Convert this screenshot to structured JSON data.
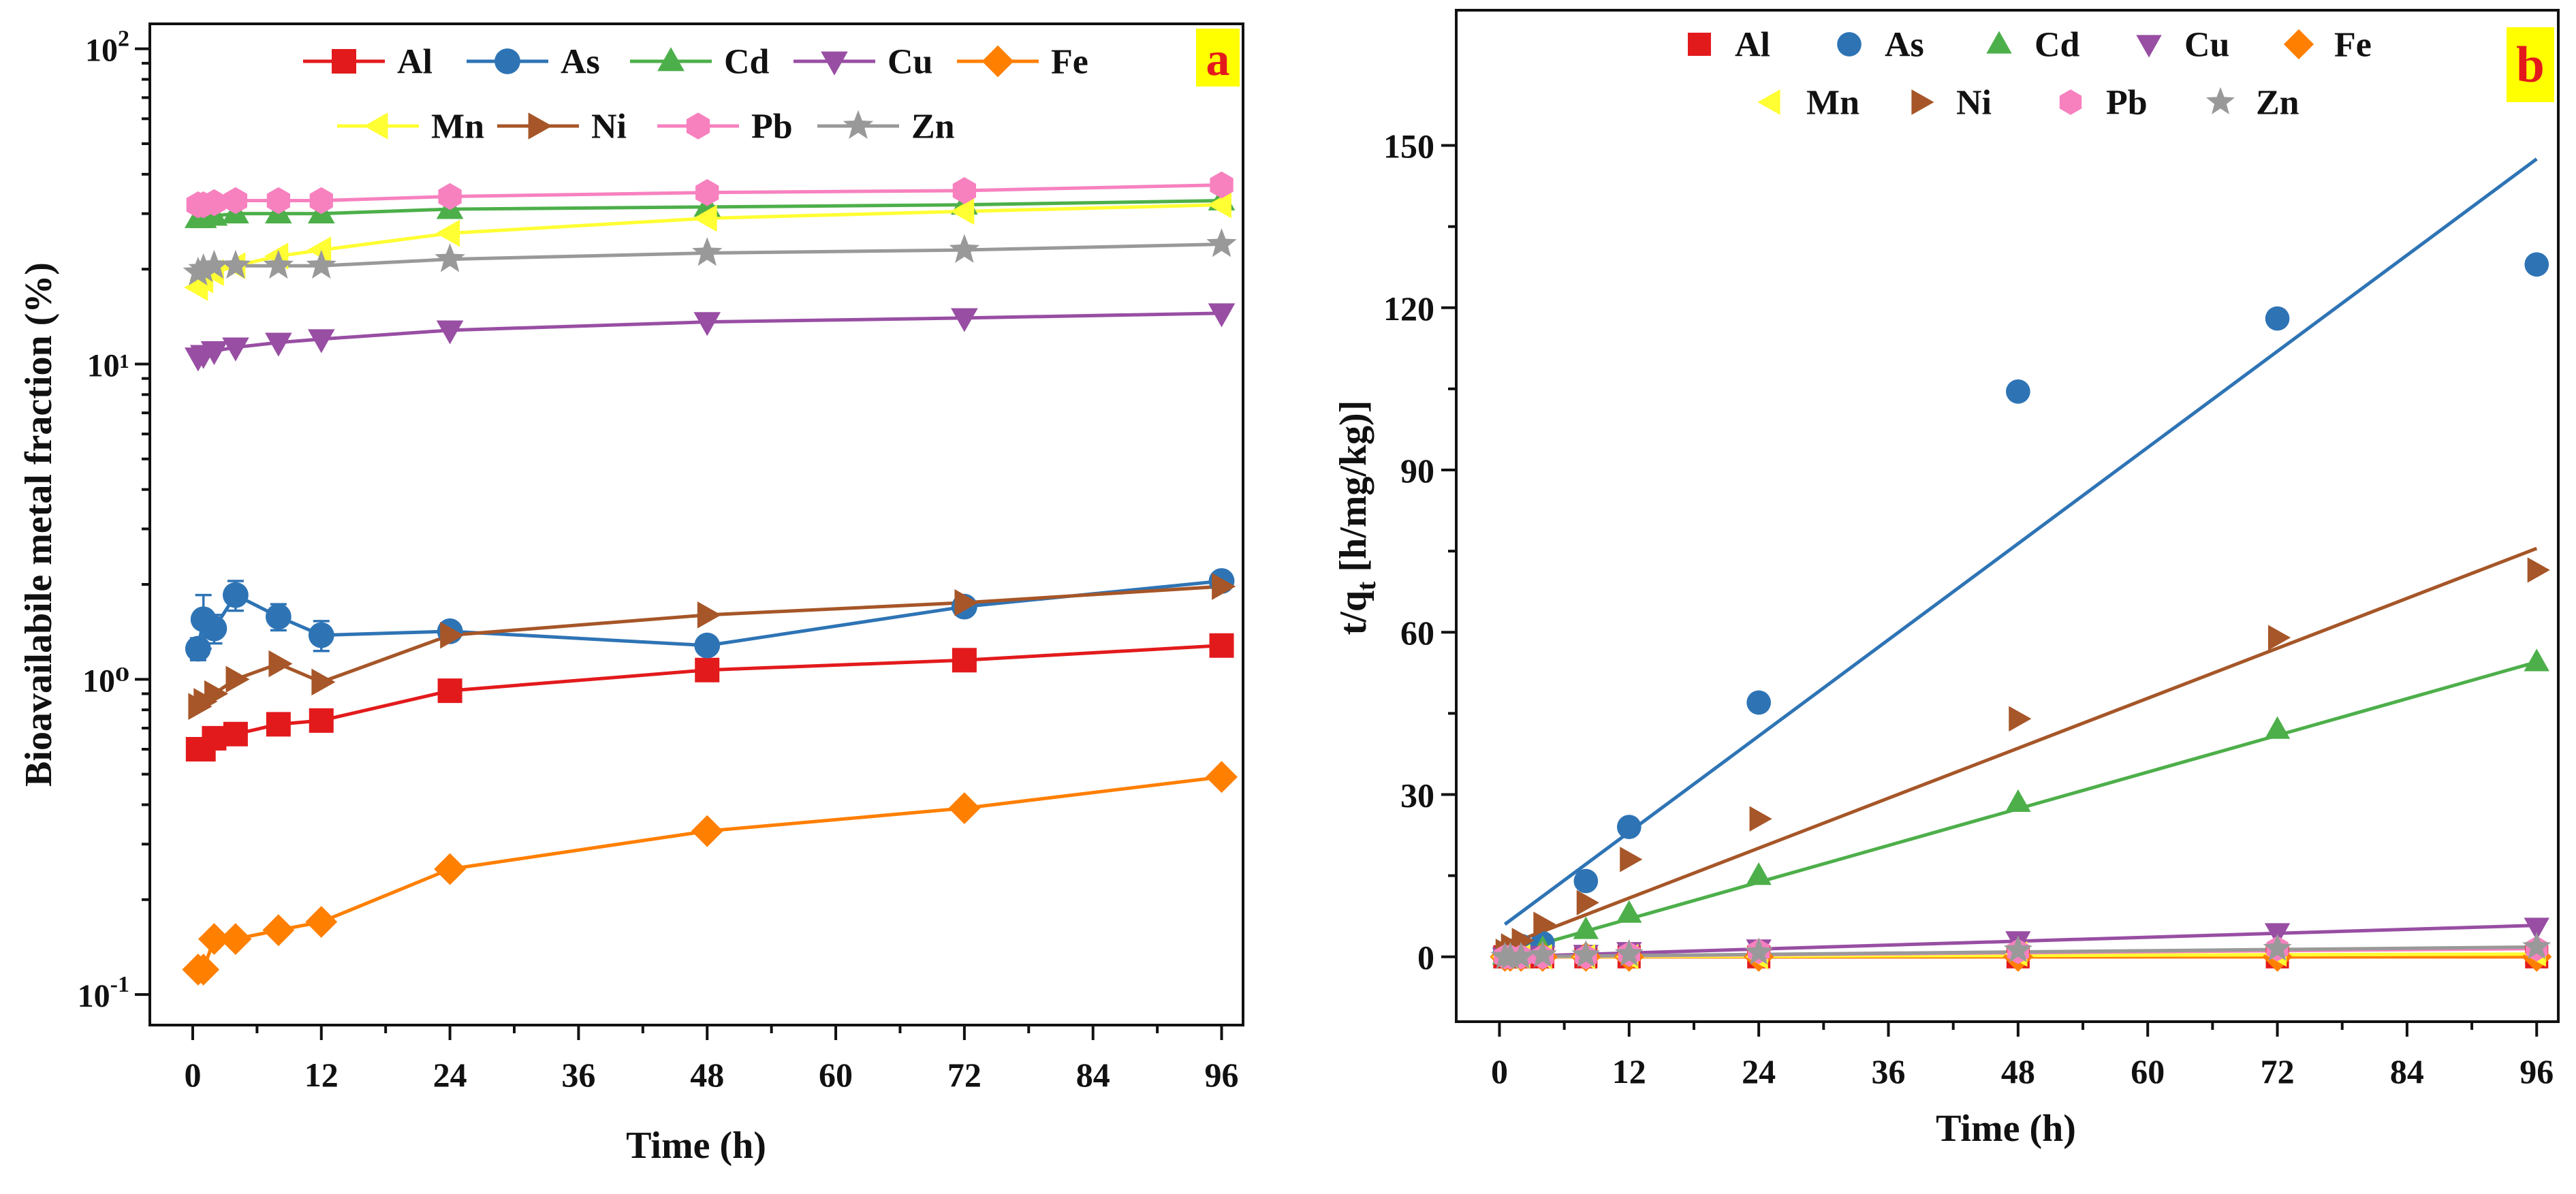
{
  "chart_data": [
    {
      "panel": "a",
      "type": "line",
      "xlabel": "Time (h)",
      "ylabel": "Bioavailabile metal fraction (%)",
      "yscale": "log",
      "xlim": [
        -4,
        98
      ],
      "ylim": [
        0.08,
        120
      ],
      "xticks": [
        0,
        12,
        24,
        36,
        48,
        60,
        72,
        84,
        96
      ],
      "yticks": [
        {
          "value": 0.1,
          "base": "10",
          "exp": "-1"
        },
        {
          "value": 1,
          "label": "10⁰"
        },
        {
          "value": 10,
          "label": "10¹"
        },
        {
          "value": 100,
          "base": "10",
          "exp": "2"
        }
      ],
      "x": [
        0.5,
        1,
        2,
        4,
        8,
        12,
        24,
        48,
        72,
        96
      ],
      "legend_position": "top",
      "series": [
        {
          "name": "Al",
          "color": "#e31a1c",
          "marker": "square",
          "values": [
            0.6,
            0.6,
            0.65,
            0.67,
            0.72,
            0.74,
            0.92,
            1.07,
            1.15,
            1.28
          ]
        },
        {
          "name": "As",
          "color": "#2e74b5",
          "marker": "circle",
          "values": [
            1.25,
            1.55,
            1.45,
            1.85,
            1.58,
            1.38,
            1.42,
            1.28,
            1.7,
            2.05
          ],
          "errors": [
            0.1,
            0.3,
            0.15,
            0.2,
            0.15,
            0.15,
            0.05,
            0.05,
            0.05,
            0.1
          ]
        },
        {
          "name": "Cd",
          "color": "#4daf4a",
          "marker": "triangle-up",
          "values": [
            29,
            29,
            29.5,
            30,
            30,
            30,
            31,
            31.5,
            32,
            33
          ]
        },
        {
          "name": "Cu",
          "color": "#984ea3",
          "marker": "triangle-down",
          "values": [
            10.5,
            10.7,
            11,
            11.3,
            11.7,
            12,
            12.8,
            13.6,
            14,
            14.5
          ]
        },
        {
          "name": "Fe",
          "color": "#ff7f00",
          "marker": "diamond",
          "values": [
            0.12,
            0.12,
            0.15,
            0.15,
            0.16,
            0.17,
            0.25,
            0.33,
            0.39,
            0.49
          ]
        },
        {
          "name": "Mn",
          "color": "#ffff33",
          "marker": "triangle-left",
          "values": [
            17.5,
            18.5,
            19.5,
            20.5,
            22,
            23,
            26,
            29,
            30.5,
            32
          ]
        },
        {
          "name": "Ni",
          "color": "#a65628",
          "marker": "triangle-right",
          "values": [
            0.82,
            0.85,
            0.9,
            1.0,
            1.12,
            0.98,
            1.38,
            1.6,
            1.75,
            1.97
          ]
        },
        {
          "name": "Pb",
          "color": "#f781bf",
          "marker": "hexagon",
          "values": [
            32,
            32,
            32.5,
            33,
            33,
            33,
            34,
            35,
            35.5,
            37
          ]
        },
        {
          "name": "Zn",
          "color": "#999999",
          "marker": "star",
          "values": [
            19.5,
            20,
            20.5,
            20.5,
            20.5,
            20.5,
            21.5,
            22.5,
            23,
            24
          ]
        }
      ],
      "badge": "a"
    },
    {
      "panel": "b",
      "type": "scatter",
      "xlabel": "Time (h)",
      "ylabel_main": "t/q",
      "ylabel_sub": "t",
      "ylabel_rest": " [h/mg/kg)]",
      "xlim": [
        -4,
        98
      ],
      "ylim": [
        -12,
        175
      ],
      "xticks": [
        0,
        12,
        24,
        36,
        48,
        60,
        72,
        84,
        96
      ],
      "yticks": [
        0,
        30,
        60,
        90,
        120,
        150
      ],
      "x": [
        0.5,
        1,
        2,
        4,
        8,
        12,
        24,
        48,
        72,
        96
      ],
      "legend_position": "top",
      "series": [
        {
          "name": "Al",
          "color": "#e31a1c",
          "marker": "square",
          "values": [
            0,
            0,
            0,
            0,
            0,
            0,
            0,
            0,
            0,
            0
          ],
          "fit": [
            [
              0.5,
              0
            ],
            [
              96,
              0
            ]
          ]
        },
        {
          "name": "As",
          "color": "#2e74b5",
          "marker": "circle",
          "values": [
            0.5,
            1,
            2,
            2.5,
            14,
            24,
            47,
            104.5,
            118,
            128
          ],
          "fit": [
            [
              0.5,
              6
            ],
            [
              96,
              147.5
            ]
          ]
        },
        {
          "name": "Cd",
          "color": "#4daf4a",
          "marker": "triangle-up",
          "values": [
            0.3,
            0.5,
            1,
            1.5,
            5,
            8,
            15,
            28.5,
            42,
            54.5
          ],
          "fit": [
            [
              0.5,
              0.5
            ],
            [
              96,
              54.5
            ]
          ]
        },
        {
          "name": "Cu",
          "color": "#984ea3",
          "marker": "triangle-down",
          "values": [
            0,
            0,
            0,
            0.3,
            0.5,
            1,
            1.5,
            3,
            4.5,
            5.5
          ],
          "fit": [
            [
              0.5,
              0
            ],
            [
              96,
              5.8
            ]
          ]
        },
        {
          "name": "Fe",
          "color": "#ff7f00",
          "marker": "diamond",
          "values": [
            0,
            0,
            0,
            0,
            0,
            0,
            0,
            0,
            0,
            0
          ],
          "fit": [
            [
              0.5,
              0
            ],
            [
              96,
              0
            ]
          ]
        },
        {
          "name": "Mn",
          "color": "#ffff33",
          "marker": "triangle-left",
          "values": [
            0,
            0,
            0,
            0,
            0,
            0,
            0,
            0.5,
            0.5,
            0.5
          ],
          "fit": [
            [
              0.5,
              0
            ],
            [
              96,
              0.5
            ]
          ]
        },
        {
          "name": "Ni",
          "color": "#a65628",
          "marker": "triangle-right",
          "values": [
            1,
            2,
            3,
            6,
            10,
            18,
            25.5,
            44,
            59,
            71.5
          ],
          "fit": [
            [
              0.5,
              2
            ],
            [
              96,
              75.5
            ]
          ]
        },
        {
          "name": "Pb",
          "color": "#f781bf",
          "marker": "hexagon",
          "values": [
            0,
            0,
            0,
            0,
            0,
            0.5,
            1,
            1,
            1.5,
            1.5
          ],
          "fit": [
            [
              0.5,
              0
            ],
            [
              96,
              1.5
            ]
          ]
        },
        {
          "name": "Zn",
          "color": "#999999",
          "marker": "star",
          "values": [
            0,
            0,
            0,
            0.3,
            0.3,
            0.5,
            0.8,
            1.2,
            1.5,
            1.8
          ],
          "fit": [
            [
              0.5,
              0
            ],
            [
              96,
              1.8
            ]
          ]
        }
      ],
      "badge": "b"
    }
  ]
}
